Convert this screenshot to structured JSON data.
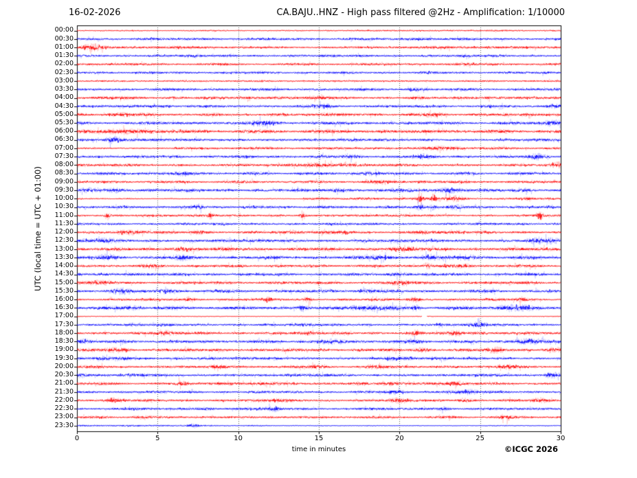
{
  "chart_data": {
    "type": "line",
    "variant": "helicorder-day-plot",
    "date": "16-02-2026",
    "title": "CA.BAJU..HNZ - High pass filtered @2Hz - Amplification: 1/10000",
    "station": "CA.BAJU..HNZ",
    "filter": "High pass filtered @2Hz",
    "amplification": "1/10000",
    "xlabel": "time in minutes",
    "ylabel": "UTC (local time = UTC + 01:00)",
    "copyright": "©ICGC 2026",
    "x_range": [
      0,
      30
    ],
    "x_ticks": [
      0,
      5,
      10,
      15,
      20,
      25,
      30
    ],
    "grid_minutes": [
      5,
      10,
      15,
      20,
      25
    ],
    "grid_color": "#555555",
    "trace_colors": {
      "red": "#ff0000",
      "blue": "#0000ff"
    },
    "minutes_per_row": 30,
    "rows": [
      {
        "time": "00:00",
        "color": "red",
        "base": 0.45,
        "segs": [
          [
            15,
            30,
            1.4
          ]
        ],
        "events": []
      },
      {
        "time": "00:30",
        "color": "blue",
        "base": 1.0,
        "events": [
          [
            21.5,
            0.8,
            0.5
          ]
        ]
      },
      {
        "time": "01:00",
        "color": "red",
        "base": 1.0,
        "events": [
          [
            1.0,
            1.8,
            0.4
          ]
        ]
      },
      {
        "time": "01:30",
        "color": "blue",
        "base": 1.0,
        "events": []
      },
      {
        "time": "02:00",
        "color": "red",
        "base": 0.95,
        "events": [
          [
            24,
            0.6,
            0.4
          ]
        ]
      },
      {
        "time": "02:30",
        "color": "blue",
        "base": 0.95,
        "events": []
      },
      {
        "time": "03:00",
        "color": "red",
        "base": 0.7,
        "events": []
      },
      {
        "time": "03:30",
        "color": "blue",
        "base": 1.05,
        "events": [
          [
            21,
            0.9,
            0.4
          ]
        ]
      },
      {
        "time": "04:00",
        "color": "red",
        "base": 1.05,
        "events": [
          [
            2.5,
            0.8,
            0.8
          ],
          [
            15.2,
            0.9,
            0.5
          ],
          [
            21,
            0.7,
            0.4
          ]
        ]
      },
      {
        "time": "04:30",
        "color": "blue",
        "base": 1.05,
        "events": [
          [
            5.5,
            0.8,
            0.4
          ],
          [
            15.3,
            1.0,
            0.5
          ],
          [
            29.7,
            0.9,
            0.4
          ]
        ]
      },
      {
        "time": "05:00",
        "color": "red",
        "base": 1.1,
        "events": [
          [
            2.8,
            0.9,
            0.5
          ],
          [
            15.5,
            0.8,
            0.4
          ],
          [
            22,
            0.9,
            0.5
          ],
          [
            27.9,
            0.8,
            0.4
          ]
        ]
      },
      {
        "time": "05:30",
        "color": "blue",
        "base": 1.2,
        "events": [
          [
            11.7,
            1.3,
            0.5
          ],
          [
            29.5,
            1.8,
            0.5
          ]
        ]
      },
      {
        "time": "06:00",
        "color": "red",
        "base": 1.35,
        "events": [
          [
            3,
            1.0,
            1.2
          ]
        ]
      },
      {
        "time": "06:30",
        "color": "blue",
        "base": 1.1,
        "events": [
          [
            2.2,
            2.0,
            0.3
          ]
        ]
      },
      {
        "time": "07:00",
        "color": "red",
        "base": 1.0,
        "segs": [
          [
            0,
            6,
            0.6
          ]
        ],
        "events": [
          [
            22.5,
            1.0,
            0.5
          ],
          [
            23.6,
            0.9,
            0.4
          ]
        ]
      },
      {
        "time": "07:30",
        "color": "blue",
        "base": 1.1,
        "events": [
          [
            17,
            0.8,
            0.5
          ],
          [
            21.5,
            0.9,
            0.4
          ],
          [
            28.6,
            1.4,
            0.4
          ]
        ]
      },
      {
        "time": "08:00",
        "color": "red",
        "base": 1.15,
        "events": [
          [
            15,
            0.9,
            0.5
          ],
          [
            29.8,
            1.3,
            0.3
          ]
        ]
      },
      {
        "time": "08:30",
        "color": "blue",
        "base": 1.1,
        "events": [
          [
            6.5,
            0.9,
            0.5
          ],
          [
            18,
            0.8,
            0.5
          ]
        ]
      },
      {
        "time": "09:00",
        "color": "red",
        "base": 1.05,
        "events": [
          [
            18.5,
            0.8,
            0.4
          ],
          [
            21.5,
            0.8,
            0.4
          ]
        ]
      },
      {
        "time": "09:30",
        "color": "blue",
        "base": 1.25,
        "events": [
          [
            0.8,
            1.2,
            0.4
          ],
          [
            2.5,
            1.0,
            0.4
          ],
          [
            19.8,
            1.1,
            0.5
          ],
          [
            23,
            1.0,
            0.4
          ],
          [
            27.5,
            1.0,
            0.4
          ]
        ]
      },
      {
        "time": "10:00",
        "color": "red",
        "base": 0.85,
        "segs": [
          [
            0,
            14,
            0.55
          ]
        ],
        "events": [
          [
            21.3,
            3.5,
            0.15
          ],
          [
            22.1,
            3.0,
            0.15
          ],
          [
            23.3,
            1.5,
            0.5
          ],
          [
            28,
            1.0,
            0.4
          ]
        ]
      },
      {
        "time": "10:30",
        "color": "blue",
        "base": 1.1,
        "events": [
          [
            7.6,
            1.2,
            0.2
          ],
          [
            21.3,
            2.2,
            0.15
          ],
          [
            22.1,
            1.8,
            0.15
          ],
          [
            23.5,
            1.0,
            0.4
          ]
        ]
      },
      {
        "time": "11:00",
        "color": "red",
        "base": 0.95,
        "events": [
          [
            1.9,
            2.5,
            0.12
          ],
          [
            8.3,
            2.0,
            0.12
          ],
          [
            14.0,
            3.0,
            0.12
          ],
          [
            28.7,
            2.8,
            0.15
          ]
        ]
      },
      {
        "time": "11:30",
        "color": "blue",
        "base": 0.95,
        "events": []
      },
      {
        "time": "12:00",
        "color": "red",
        "base": 1.1,
        "events": [
          [
            3.2,
            0.9,
            0.5
          ],
          [
            7.5,
            1.0,
            0.4
          ],
          [
            16.5,
            0.9,
            0.5
          ],
          [
            21.5,
            0.8,
            0.4
          ]
        ]
      },
      {
        "time": "12:30",
        "color": "blue",
        "base": 1.2,
        "events": [
          [
            1.8,
            1.1,
            0.4
          ],
          [
            29,
            1.6,
            0.8
          ]
        ]
      },
      {
        "time": "13:00",
        "color": "red",
        "base": 1.3,
        "events": [
          [
            6.5,
            1.0,
            0.5
          ],
          [
            20,
            1.0,
            0.6
          ]
        ]
      },
      {
        "time": "13:30",
        "color": "blue",
        "base": 1.3,
        "events": [
          [
            2,
            1.2,
            0.4
          ],
          [
            6.5,
            1.0,
            0.4
          ],
          [
            18.7,
            1.3,
            0.5
          ],
          [
            21.8,
            1.2,
            0.4
          ],
          [
            24.3,
            1.1,
            0.4
          ]
        ]
      },
      {
        "time": "14:00",
        "color": "red",
        "base": 1.1,
        "events": [
          [
            4.5,
            0.9,
            0.4
          ],
          [
            21.7,
            1.6,
            0.2
          ],
          [
            24,
            1.0,
            0.4
          ]
        ]
      },
      {
        "time": "14:30",
        "color": "blue",
        "base": 1.1,
        "events": [
          [
            3.2,
            0.9,
            0.4
          ],
          [
            20,
            1.0,
            0.5
          ]
        ]
      },
      {
        "time": "15:00",
        "color": "red",
        "base": 1.1,
        "events": [
          [
            1.5,
            1.0,
            0.4
          ],
          [
            20,
            1.3,
            0.4
          ]
        ]
      },
      {
        "time": "15:30",
        "color": "blue",
        "base": 1.2,
        "events": [
          [
            2.7,
            1.2,
            0.5
          ],
          [
            5.5,
            1.0,
            0.4
          ],
          [
            17.8,
            0.9,
            0.4
          ]
        ]
      },
      {
        "time": "16:00",
        "color": "red",
        "base": 1.0,
        "events": [
          [
            7,
            1.3,
            0.2
          ],
          [
            11.9,
            1.8,
            0.15
          ],
          [
            14.3,
            1.8,
            0.15
          ],
          [
            21,
            1.2,
            0.25
          ],
          [
            27.5,
            1.4,
            0.25
          ]
        ]
      },
      {
        "time": "16:30",
        "color": "blue",
        "base": 1.3,
        "events": [
          [
            3.5,
            1.1,
            0.4
          ],
          [
            14,
            1.5,
            0.2
          ],
          [
            18,
            1.3,
            1.0
          ],
          [
            21,
            1.5,
            0.2
          ],
          [
            27,
            1.2,
            1.2
          ]
        ]
      },
      {
        "time": "17:00",
        "color": "red",
        "base": 0.35,
        "gap": [
          21.4,
          21.7
        ],
        "events": []
      },
      {
        "time": "17:30",
        "color": "blue",
        "base": 1.05,
        "events": [
          [
            25,
            1.8,
            0.3
          ]
        ]
      },
      {
        "time": "18:00",
        "color": "red",
        "base": 1.15,
        "events": [
          [
            5.3,
            1.4,
            0.3
          ],
          [
            21,
            1.5,
            0.25
          ],
          [
            23.5,
            1.3,
            0.25
          ],
          [
            28,
            0.9,
            0.4
          ]
        ]
      },
      {
        "time": "18:30",
        "color": "blue",
        "base": 1.2,
        "events": [
          [
            0.5,
            1.2,
            0.4
          ],
          [
            16,
            1.0,
            0.5
          ],
          [
            21,
            1.0,
            0.4
          ],
          [
            28,
            1.3,
            0.6
          ]
        ]
      },
      {
        "time": "19:00",
        "color": "red",
        "base": 1.2,
        "events": [
          [
            2.5,
            1.1,
            0.5
          ],
          [
            21.5,
            1.0,
            0.4
          ],
          [
            26,
            1.0,
            0.4
          ],
          [
            29.5,
            1.4,
            0.4
          ]
        ]
      },
      {
        "time": "19:30",
        "color": "blue",
        "base": 1.1,
        "events": [
          [
            1.5,
            1.0,
            0.4
          ],
          [
            3,
            0.9,
            0.4
          ],
          [
            19.5,
            0.9,
            0.4
          ]
        ]
      },
      {
        "time": "20:00",
        "color": "red",
        "base": 1.05,
        "events": [
          [
            8.7,
            0.9,
            0.4
          ],
          [
            15,
            0.8,
            0.4
          ],
          [
            18.5,
            0.9,
            0.4
          ],
          [
            26.7,
            1.3,
            0.4
          ]
        ]
      },
      {
        "time": "20:30",
        "color": "blue",
        "base": 1.1,
        "events": [
          [
            0.3,
            1.1,
            0.3
          ],
          [
            29.5,
            1.5,
            0.4
          ]
        ]
      },
      {
        "time": "21:00",
        "color": "red",
        "base": 1.1,
        "events": [
          [
            6.5,
            1.6,
            0.3
          ],
          [
            17.5,
            1.0,
            0.4
          ],
          [
            19.5,
            0.9,
            0.4
          ],
          [
            23.5,
            1.1,
            0.4
          ]
        ]
      },
      {
        "time": "21:30",
        "color": "blue",
        "base": 1.0,
        "events": [
          [
            19.7,
            0.9,
            0.4
          ],
          [
            23.3,
            1.0,
            0.4
          ],
          [
            24.4,
            1.1,
            0.3
          ]
        ]
      },
      {
        "time": "22:00",
        "color": "red",
        "base": 1.0,
        "events": [
          [
            2.2,
            0.9,
            0.4
          ],
          [
            12.5,
            0.8,
            0.4
          ],
          [
            20,
            1.0,
            0.4
          ],
          [
            24,
            1.0,
            0.4
          ],
          [
            28.7,
            1.0,
            0.3
          ]
        ]
      },
      {
        "time": "22:30",
        "color": "blue",
        "base": 1.0,
        "events": [
          [
            8,
            0.8,
            0.4
          ],
          [
            12.2,
            1.3,
            0.3
          ],
          [
            22.8,
            1.0,
            0.3
          ]
        ]
      },
      {
        "time": "23:00",
        "color": "red",
        "base": 0.95,
        "events": [
          [
            4,
            0.8,
            0.4
          ],
          [
            26.6,
            1.4,
            0.3
          ]
        ]
      },
      {
        "time": "23:30",
        "color": "blue",
        "base": 0.6,
        "segs": [
          [
            12,
            30,
            0.55
          ]
        ],
        "events": [
          [
            7.2,
            1.5,
            0.3
          ]
        ]
      }
    ]
  }
}
